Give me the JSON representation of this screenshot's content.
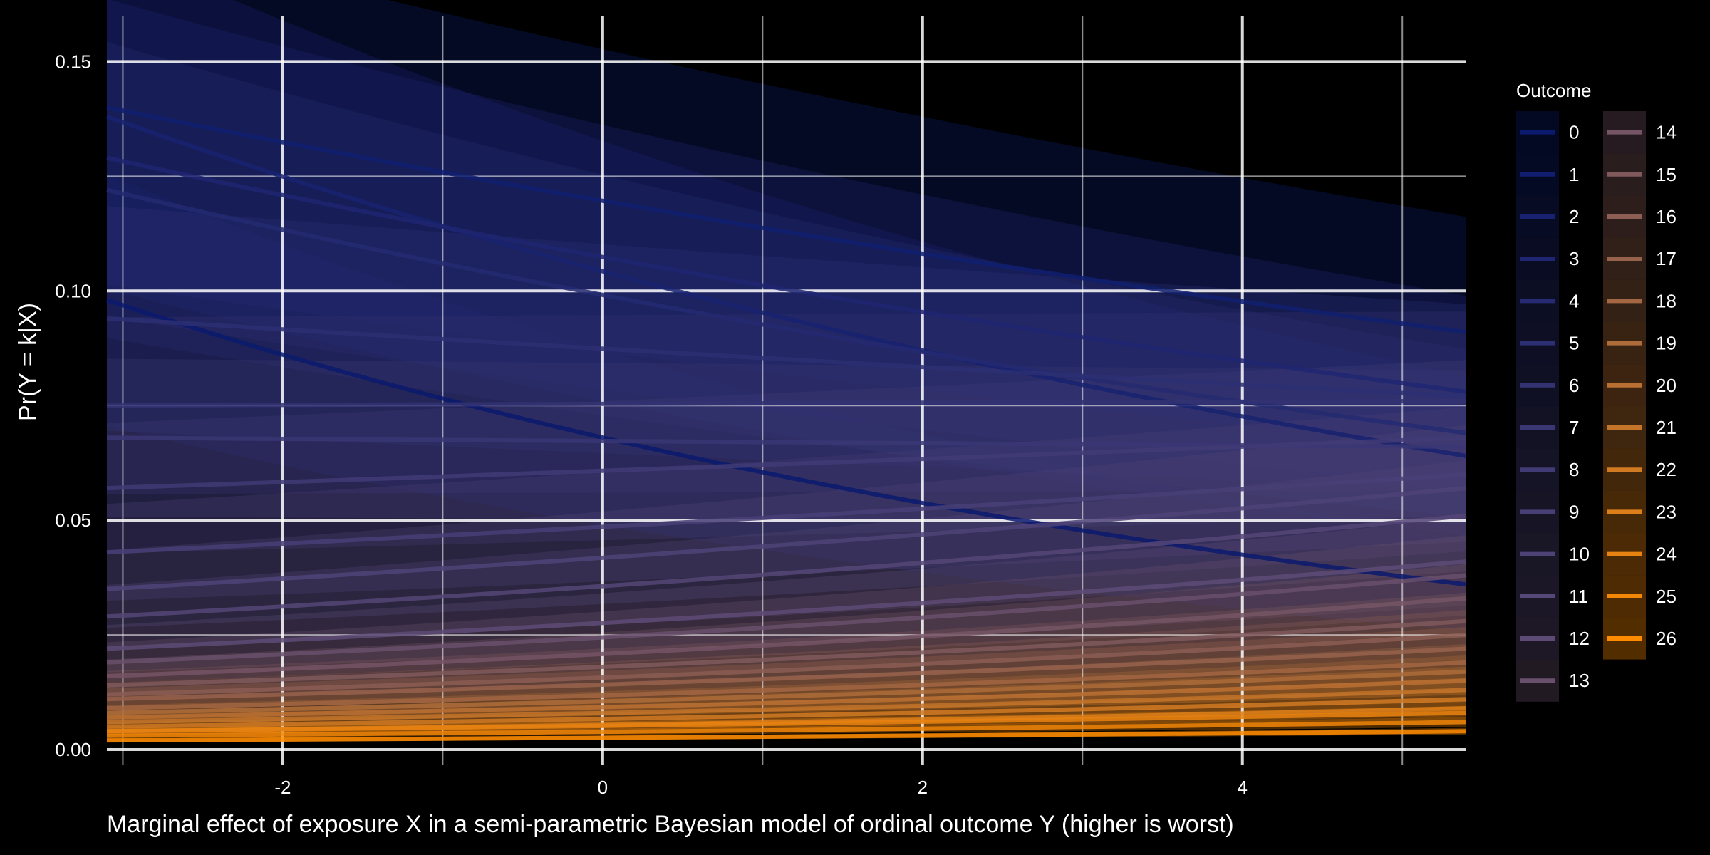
{
  "chart_data": {
    "type": "line",
    "title": "",
    "xlabel": "Marginal effect of exposure X in a semi-parametric Bayesian model of ordinal outcome Y (higher is worst)",
    "ylabel": "Pr(Y = k|X)",
    "xlim": [
      -3.1,
      5.4
    ],
    "ylim": [
      0,
      0.16
    ],
    "x_ticks": [
      -2,
      0,
      2,
      4
    ],
    "x_tick_labels": [
      "-2",
      "0",
      "2",
      "4"
    ],
    "y_ticks": [
      0,
      0.05,
      0.1,
      0.15
    ],
    "y_tick_labels": [
      "0.00",
      "0.05",
      "0.10",
      "0.15"
    ],
    "grid": true,
    "x_range": [
      -3.1,
      5.4
    ],
    "legend": {
      "title": "Outcome",
      "position": "right",
      "columns": 2
    },
    "colors": {
      "low": "#0a1a6e",
      "mid": "#5a4a78",
      "high": "#ff8c00",
      "background": "#000000",
      "grid": "#ffffff"
    },
    "series": [
      {
        "name": "0",
        "x": [
          -3.1,
          5.4
        ],
        "y": [
          0.098,
          0.036
        ]
      },
      {
        "name": "1",
        "x": [
          -3.1,
          5.4
        ],
        "y": [
          0.14,
          0.091
        ]
      },
      {
        "name": "2",
        "x": [
          -3.1,
          5.4
        ],
        "y": [
          0.138,
          0.064
        ]
      },
      {
        "name": "3",
        "x": [
          -3.1,
          5.4
        ],
        "y": [
          0.129,
          0.078
        ]
      },
      {
        "name": "4",
        "x": [
          -3.1,
          5.4
        ],
        "y": [
          0.122,
          0.069
        ]
      },
      {
        "name": "5",
        "x": [
          -3.1,
          5.4
        ],
        "y": [
          0.094,
          0.077
        ]
      },
      {
        "name": "6",
        "x": [
          -3.1,
          5.4
        ],
        "y": [
          0.075,
          0.076
        ]
      },
      {
        "name": "7",
        "x": [
          -3.1,
          5.4
        ],
        "y": [
          0.068,
          0.066
        ]
      },
      {
        "name": "8",
        "x": [
          -3.1,
          5.4
        ],
        "y": [
          0.057,
          0.068
        ]
      },
      {
        "name": "9",
        "x": [
          -3.1,
          5.4
        ],
        "y": [
          0.043,
          0.06
        ]
      },
      {
        "name": "10",
        "x": [
          -3.1,
          5.4
        ],
        "y": [
          0.035,
          0.057
        ]
      },
      {
        "name": "11",
        "x": [
          -3.1,
          5.4
        ],
        "y": [
          0.029,
          0.051
        ]
      },
      {
        "name": "12",
        "x": [
          -3.1,
          5.4
        ],
        "y": [
          0.022,
          0.041
        ]
      },
      {
        "name": "13",
        "x": [
          -3.1,
          5.4
        ],
        "y": [
          0.019,
          0.038
        ]
      },
      {
        "name": "14",
        "x": [
          -3.1,
          5.4
        ],
        "y": [
          0.016,
          0.033
        ]
      },
      {
        "name": "15",
        "x": [
          -3.1,
          5.4
        ],
        "y": [
          0.014,
          0.028
        ]
      },
      {
        "name": "16",
        "x": [
          -3.1,
          5.4
        ],
        "y": [
          0.012,
          0.025
        ]
      },
      {
        "name": "17",
        "x": [
          -3.1,
          5.4
        ],
        "y": [
          0.011,
          0.022
        ]
      },
      {
        "name": "18",
        "x": [
          -3.1,
          5.4
        ],
        "y": [
          0.009,
          0.019
        ]
      },
      {
        "name": "19",
        "x": [
          -3.1,
          5.4
        ],
        "y": [
          0.008,
          0.017
        ]
      },
      {
        "name": "20",
        "x": [
          -3.1,
          5.4
        ],
        "y": [
          0.007,
          0.015
        ]
      },
      {
        "name": "21",
        "x": [
          -3.1,
          5.4
        ],
        "y": [
          0.006,
          0.013
        ]
      },
      {
        "name": "22",
        "x": [
          -3.1,
          5.4
        ],
        "y": [
          0.005,
          0.011
        ]
      },
      {
        "name": "23",
        "x": [
          -3.1,
          5.4
        ],
        "y": [
          0.004,
          0.009
        ]
      },
      {
        "name": "24",
        "x": [
          -3.1,
          5.4
        ],
        "y": [
          0.004,
          0.008
        ]
      },
      {
        "name": "25",
        "x": [
          -3.1,
          5.4
        ],
        "y": [
          0.003,
          0.006
        ]
      },
      {
        "name": "26",
        "x": [
          -3.1,
          5.4
        ],
        "y": [
          0.002,
          0.004
        ]
      }
    ]
  }
}
